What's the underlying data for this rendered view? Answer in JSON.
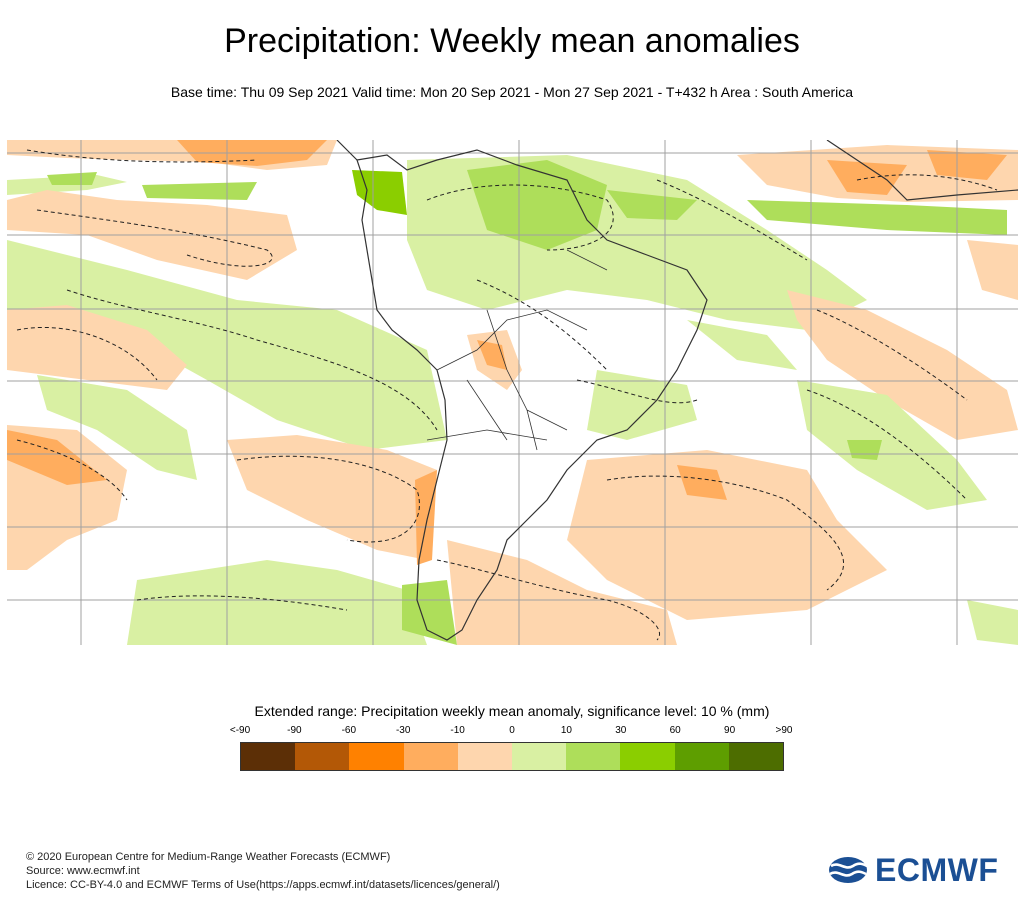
{
  "header": {
    "title": "Precipitation: Weekly mean anomalies",
    "subtitle": "Base time: Thu 09 Sep 2021 Valid time: Mon 20 Sep 2021 - Mon 27 Sep 2021 - T+432 h Area : South America"
  },
  "legend": {
    "title": "Extended range: Precipitation weekly mean anomaly, significance level: 10 % (mm)",
    "ticks": [
      "<-90",
      "-90",
      "-60",
      "-30",
      "-10",
      "0",
      "10",
      "30",
      "60",
      "90",
      ">90"
    ],
    "colors": [
      "#5c2f06",
      "#b35806",
      "#ff8100",
      "#ffad5e",
      "#fed6ae",
      "#d9f0a3",
      "#aede5a",
      "#8bce00",
      "#5e9e00",
      "#4d6d00"
    ]
  },
  "footer": {
    "copyright": "© 2020 European Centre for Medium-Range Weather Forecasts (ECMWF)",
    "source": "Source: www.ecmwf.int",
    "licence": "Licence: CC-BY-4.0 and ECMWF Terms of Use(https://apps.ecmwf.int/datasets/licences/general/)"
  },
  "logo": {
    "text": "ECMWF",
    "color": "#1b4f94"
  }
}
